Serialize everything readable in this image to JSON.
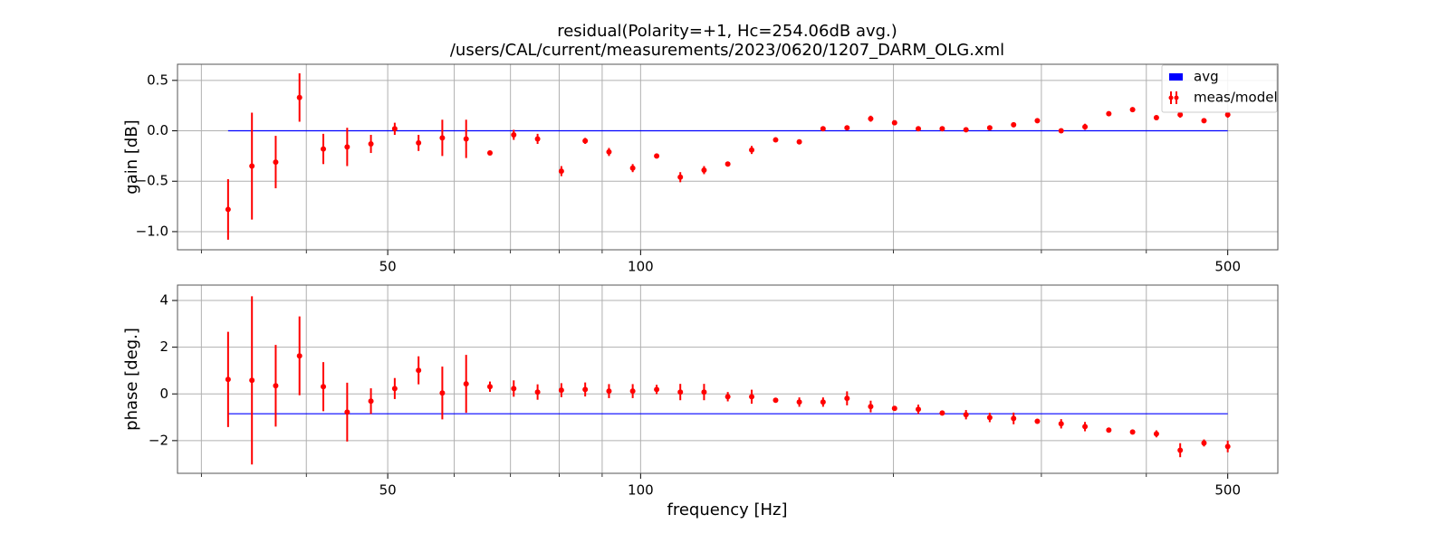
{
  "chart_data": [
    {
      "type": "errorbar",
      "title": "residual(Polarity=+1,  Hc=254.06dB avg.)",
      "subtitle": "/users/CAL/current/measurements/2023/0620/1207_DARM_OLG.xml",
      "ylabel": "gain [dB]",
      "xscale": "log",
      "grid": true,
      "legend": "upper right",
      "xlim": [
        28.1,
        573.6
      ],
      "xticks": [
        50,
        100,
        500
      ],
      "xminor": [
        30,
        40,
        60,
        70,
        80,
        90,
        200,
        300,
        400
      ],
      "ylim": [
        -1.18,
        0.66
      ],
      "yticks": [
        {
          "value": -1.0,
          "label": "−1.0"
        },
        {
          "value": -0.5,
          "label": "−0.5"
        },
        {
          "value": 0.0,
          "label": "0.0"
        },
        0.5
      ],
      "x": [
        32.28,
        34.46,
        36.78,
        39.26,
        41.91,
        44.74,
        47.75,
        50.97,
        54.41,
        58.07,
        61.99,
        66.17,
        70.63,
        75.4,
        80.48,
        85.91,
        91.7,
        97.86,
        104.5,
        111.5,
        119.0,
        127.0,
        135.6,
        144.8,
        154.5,
        164.9,
        176.1,
        187.9,
        200.6,
        214.1,
        228.6,
        244.0,
        260.4,
        278.0,
        296.7,
        316.7,
        338.1,
        360.9,
        385.2,
        411.2,
        438.9,
        468.5,
        500.0
      ],
      "series": [
        {
          "name": "avg",
          "color": "#0000ff",
          "x": [
            32.28,
            500.0
          ],
          "values": [
            0.0,
            0.0
          ]
        },
        {
          "name": "meas/model",
          "color": "#ff0000",
          "values": [
            -0.78,
            -0.35,
            -0.31,
            0.33,
            -0.18,
            -0.16,
            -0.13,
            0.02,
            -0.12,
            -0.07,
            -0.08,
            -0.22,
            -0.04,
            -0.08,
            -0.4,
            -0.1,
            -0.21,
            -0.37,
            -0.25,
            -0.46,
            -0.39,
            -0.33,
            -0.19,
            -0.09,
            -0.11,
            0.02,
            0.03,
            0.12,
            0.08,
            0.02,
            0.02,
            0.01,
            0.03,
            0.06,
            0.1,
            0.0,
            0.04,
            0.17,
            0.21,
            0.13,
            0.16,
            0.1,
            0.16
          ],
          "errors": [
            0.3,
            0.53,
            0.26,
            0.24,
            0.15,
            0.19,
            0.09,
            0.06,
            0.08,
            0.18,
            0.19,
            0.02,
            0.05,
            0.05,
            0.05,
            0.03,
            0.04,
            0.04,
            0.02,
            0.05,
            0.04,
            0.02,
            0.04,
            0.02,
            0.02,
            0.02,
            0.02,
            0.03,
            0.02,
            0.02,
            0.02,
            0.02,
            0.02,
            0.02,
            0.02,
            0.02,
            0.03,
            0.02,
            0.02,
            0.02,
            0.03,
            0.02,
            0.03
          ]
        }
      ]
    },
    {
      "type": "errorbar",
      "ylabel": "phase [deg.]",
      "xlabel": "frequency [Hz]",
      "xscale": "log",
      "grid": true,
      "xlim": [
        28.1,
        573.6
      ],
      "xticks": [
        50,
        100,
        500
      ],
      "xminor": [
        30,
        40,
        60,
        70,
        80,
        90,
        200,
        300,
        400
      ],
      "ylim": [
        -3.4,
        4.66
      ],
      "yticks": [
        {
          "value": -2,
          "label": "−2"
        },
        0,
        2,
        4
      ],
      "x": [
        32.28,
        34.46,
        36.78,
        39.26,
        41.91,
        44.74,
        47.75,
        50.97,
        54.41,
        58.07,
        61.99,
        66.17,
        70.63,
        75.4,
        80.48,
        85.91,
        91.7,
        97.86,
        104.5,
        111.5,
        119.0,
        127.0,
        135.6,
        144.8,
        154.5,
        164.9,
        176.1,
        187.9,
        200.6,
        214.1,
        228.6,
        244.0,
        260.4,
        278.0,
        296.7,
        316.7,
        338.1,
        360.9,
        385.2,
        411.2,
        438.9,
        468.5,
        500.0
      ],
      "series": [
        {
          "color": "#0000ff",
          "x": [
            32.28,
            500.0
          ],
          "values": [
            -0.85,
            -0.85
          ]
        },
        {
          "color": "#ff0000",
          "values": [
            0.62,
            0.58,
            0.35,
            1.63,
            0.31,
            -0.78,
            -0.31,
            0.23,
            1.01,
            0.04,
            0.43,
            0.31,
            0.23,
            0.08,
            0.16,
            0.19,
            0.12,
            0.12,
            0.19,
            0.08,
            0.08,
            -0.12,
            -0.12,
            -0.27,
            -0.35,
            -0.35,
            -0.19,
            -0.54,
            -0.62,
            -0.66,
            -0.82,
            -0.89,
            -1.01,
            -1.05,
            -1.17,
            -1.28,
            -1.4,
            -1.55,
            -1.63,
            -1.71,
            -2.41,
            -2.1,
            -2.25
          ],
          "errors": [
            2.04,
            3.6,
            1.75,
            1.69,
            1.05,
            1.26,
            0.55,
            0.45,
            0.6,
            1.13,
            1.24,
            0.22,
            0.35,
            0.33,
            0.3,
            0.3,
            0.3,
            0.3,
            0.2,
            0.35,
            0.35,
            0.2,
            0.3,
            0.08,
            0.2,
            0.2,
            0.3,
            0.25,
            0.08,
            0.2,
            0.1,
            0.2,
            0.2,
            0.25,
            0.1,
            0.2,
            0.2,
            0.1,
            0.1,
            0.15,
            0.3,
            0.15,
            0.25
          ]
        }
      ]
    }
  ]
}
